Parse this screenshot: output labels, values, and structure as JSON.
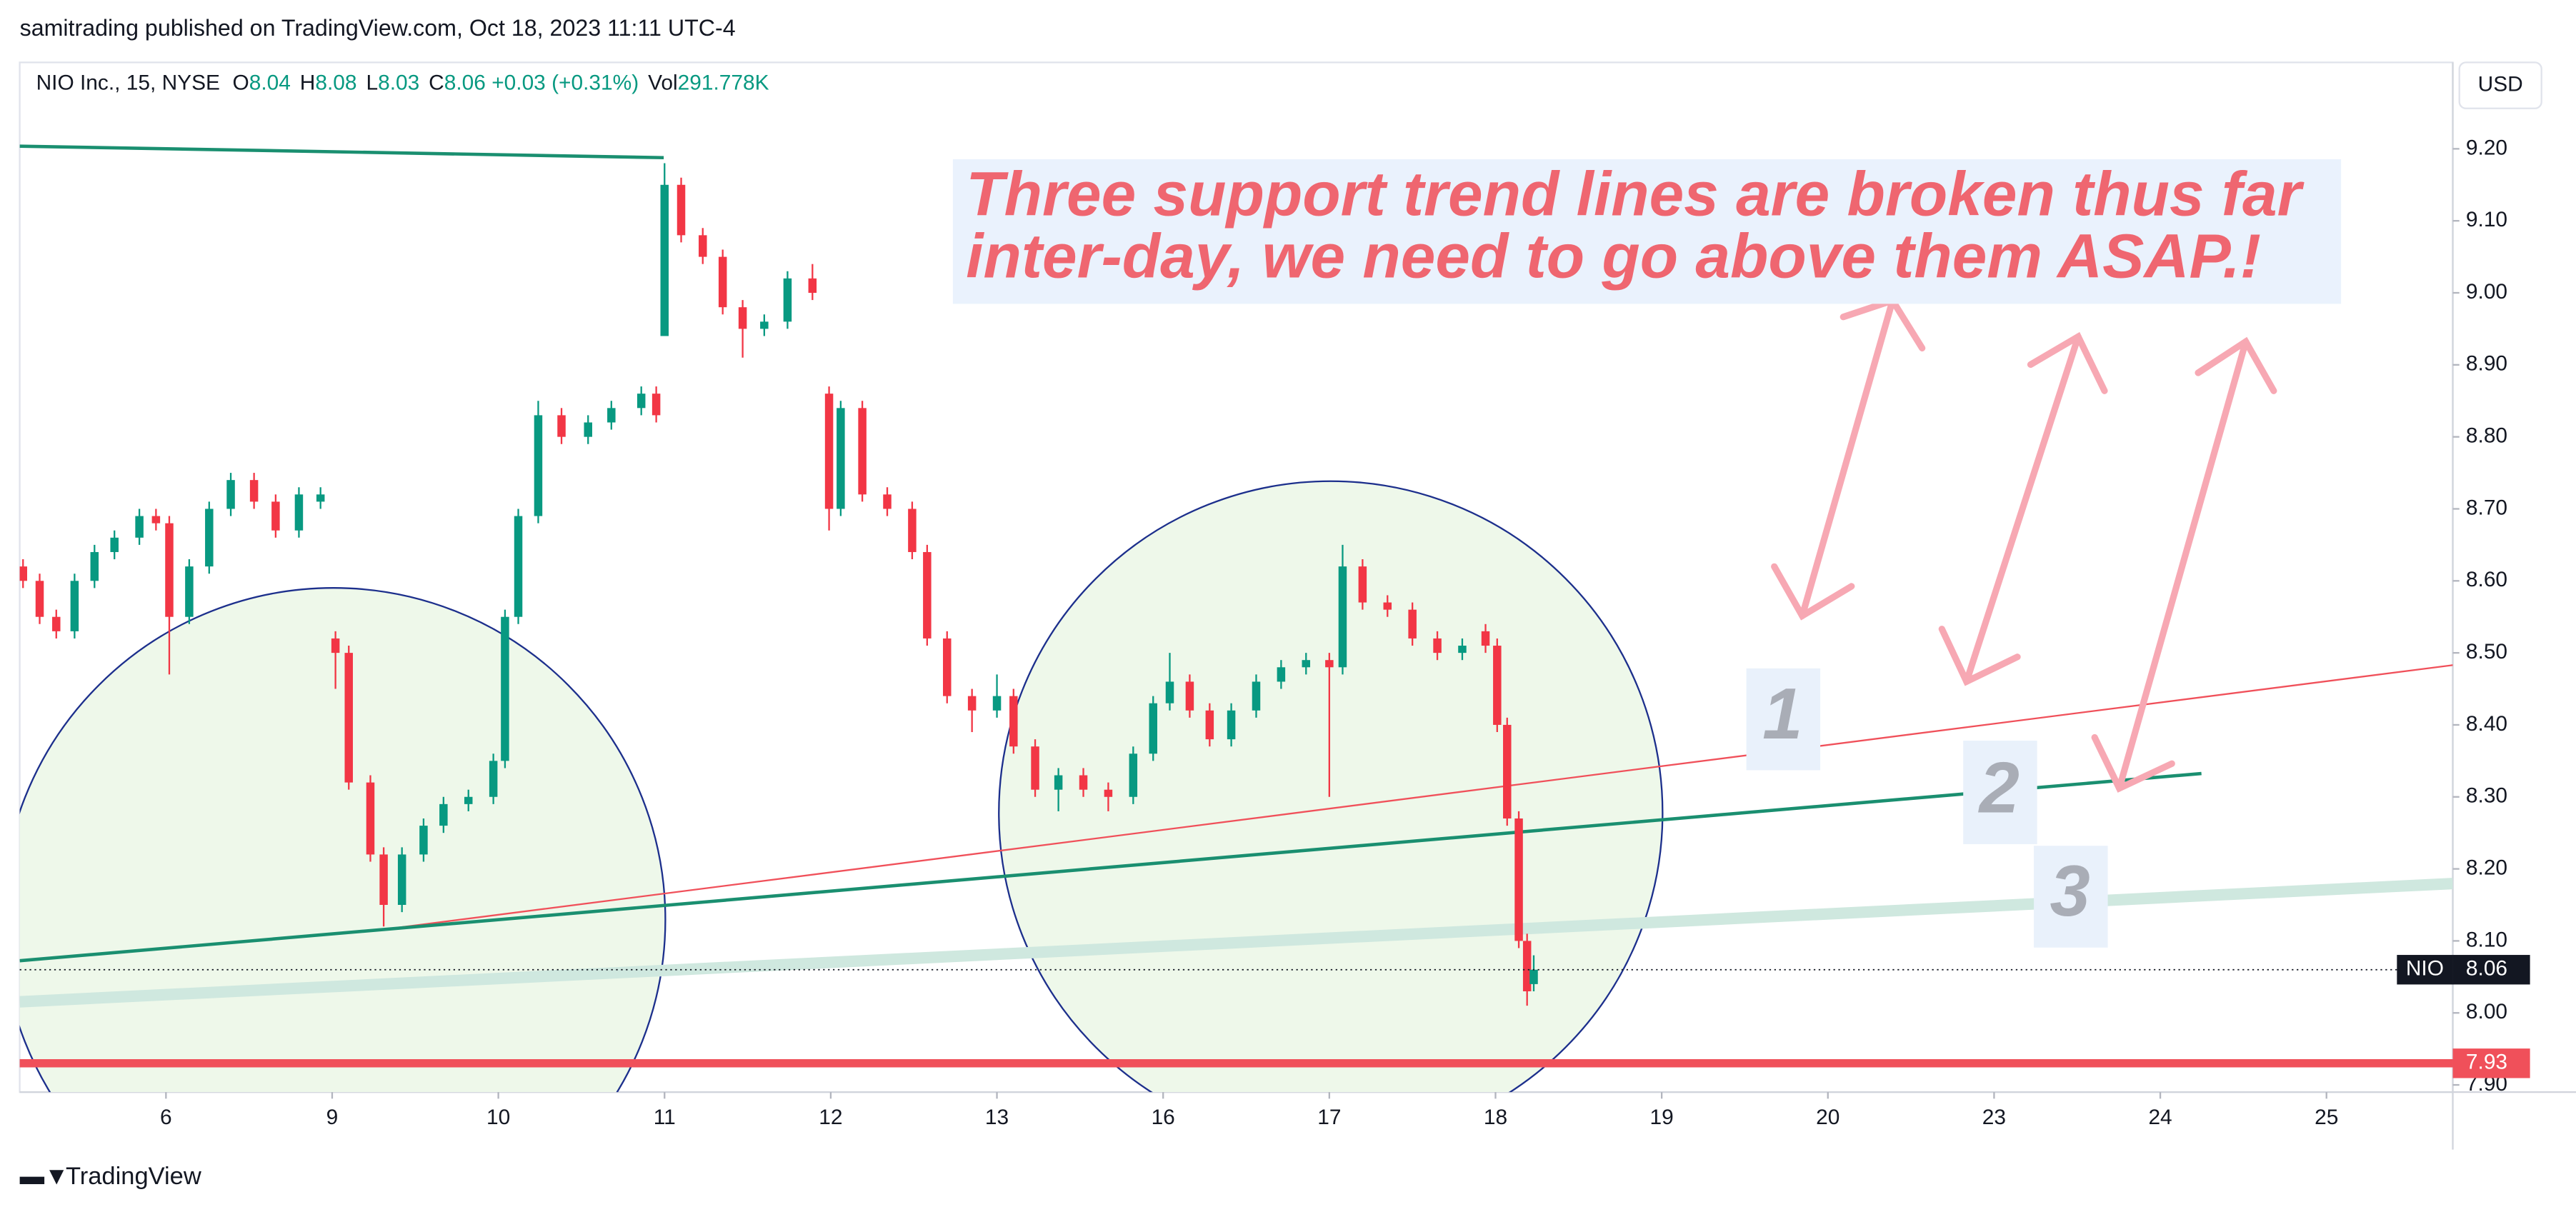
{
  "header": {
    "publisher": "samitrading published on TradingView.com, Oct 18, 2023 11:11 UTC-4",
    "footer": "TradingView"
  },
  "chart_data": {
    "type": "candlestick",
    "symbol_info": "NIO Inc., 15, NYSE",
    "legend_values": {
      "o_label": "O",
      "o": 8.04,
      "h_label": "H",
      "h": 8.08,
      "l_label": "L",
      "l": 8.03,
      "c_label": "C",
      "c": 8.06,
      "change": "+0.03 (+0.31%)",
      "vol_label": "Vol",
      "vol": "291.778K"
    },
    "currency": "USD",
    "annotation": [
      "Three support trend lines are broken thus far",
      "inter-day, we need to go above them ASAP.!"
    ],
    "line_numbers": [
      "1",
      "2",
      "3"
    ],
    "horizontal_line": {
      "value": 7.93,
      "color": "#f0505a"
    },
    "up_color": "#089981",
    "down_color": "#f23645",
    "series": [
      {
        "name": "NIO",
        "x": [
          -0.86,
          -0.76,
          -0.66,
          -0.55,
          -0.43,
          -0.31,
          -0.16,
          -0.06,
          0.02,
          0.14,
          0.26,
          0.39,
          0.53,
          0.66,
          0.8,
          0.93,
          1.02,
          1.1,
          1.23,
          1.31,
          1.42,
          1.55,
          1.67,
          1.82,
          1.97,
          2.04,
          2.12,
          2.24,
          2.38,
          2.54,
          2.68,
          2.86,
          2.95,
          3.0,
          3.1,
          3.23,
          3.35,
          3.47,
          3.6,
          3.74,
          3.89,
          3.99,
          4.06,
          4.19,
          4.34,
          4.49,
          4.58,
          4.7,
          4.85,
          5.0,
          5.1,
          5.23,
          5.37,
          5.52,
          5.67,
          5.82,
          5.94,
          6.04,
          6.16,
          6.28,
          6.41,
          6.56,
          6.71,
          6.86,
          7.0,
          7.08,
          7.2,
          7.35,
          7.5,
          7.65,
          7.8,
          7.94,
          8.01,
          8.07,
          8.14,
          8.19,
          8.23
        ],
        "open": [
          8.62,
          8.6,
          8.55,
          8.53,
          8.6,
          8.64,
          8.66,
          8.69,
          8.68,
          8.55,
          8.62,
          8.7,
          8.74,
          8.71,
          8.67,
          8.71,
          8.52,
          8.5,
          8.32,
          8.22,
          8.15,
          8.22,
          8.26,
          8.29,
          8.3,
          8.35,
          8.55,
          8.69,
          8.83,
          8.8,
          8.82,
          8.84,
          8.86,
          8.94,
          9.15,
          9.08,
          9.05,
          8.98,
          8.95,
          8.96,
          9.02,
          8.86,
          8.7,
          8.84,
          8.72,
          8.7,
          8.64,
          8.52,
          8.44,
          8.42,
          8.44,
          8.37,
          8.31,
          8.33,
          8.31,
          8.3,
          8.36,
          8.43,
          8.46,
          8.42,
          8.38,
          8.42,
          8.46,
          8.48,
          8.49,
          8.48,
          8.62,
          8.57,
          8.56,
          8.52,
          8.5,
          8.53,
          8.51,
          8.4,
          8.27,
          8.1,
          8.04
        ],
        "high": [
          8.63,
          8.61,
          8.56,
          8.61,
          8.65,
          8.67,
          8.7,
          8.7,
          8.69,
          8.63,
          8.71,
          8.75,
          8.75,
          8.72,
          8.73,
          8.73,
          8.53,
          8.51,
          8.33,
          8.23,
          8.23,
          8.27,
          8.3,
          8.31,
          8.36,
          8.56,
          8.7,
          8.85,
          8.84,
          8.83,
          8.85,
          8.87,
          8.87,
          9.18,
          9.16,
          9.09,
          9.06,
          8.99,
          8.97,
          9.03,
          9.04,
          8.87,
          8.85,
          8.85,
          8.73,
          8.71,
          8.65,
          8.53,
          8.45,
          8.47,
          8.45,
          8.38,
          8.34,
          8.34,
          8.32,
          8.37,
          8.44,
          8.5,
          8.47,
          8.43,
          8.43,
          8.47,
          8.49,
          8.5,
          8.5,
          8.65,
          8.63,
          8.58,
          8.57,
          8.53,
          8.52,
          8.54,
          8.52,
          8.41,
          8.28,
          8.11,
          8.08
        ],
        "low": [
          8.59,
          8.54,
          8.52,
          8.52,
          8.59,
          8.63,
          8.65,
          8.67,
          8.47,
          8.54,
          8.61,
          8.69,
          8.7,
          8.66,
          8.66,
          8.7,
          8.45,
          8.31,
          8.21,
          8.12,
          8.14,
          8.21,
          8.25,
          8.28,
          8.29,
          8.34,
          8.54,
          8.68,
          8.79,
          8.79,
          8.81,
          8.83,
          8.82,
          8.94,
          9.07,
          9.04,
          8.97,
          8.91,
          8.94,
          8.95,
          8.99,
          8.67,
          8.69,
          8.71,
          8.69,
          8.63,
          8.51,
          8.43,
          8.39,
          8.41,
          8.36,
          8.3,
          8.28,
          8.3,
          8.28,
          8.29,
          8.35,
          8.42,
          8.41,
          8.37,
          8.37,
          8.41,
          8.45,
          8.47,
          8.3,
          8.47,
          8.56,
          8.55,
          8.51,
          8.49,
          8.49,
          8.5,
          8.39,
          8.26,
          8.09,
          8.01,
          8.03
        ],
        "close": [
          8.6,
          8.55,
          8.53,
          8.6,
          8.64,
          8.66,
          8.69,
          8.68,
          8.55,
          8.62,
          8.7,
          8.74,
          8.71,
          8.67,
          8.72,
          8.72,
          8.5,
          8.32,
          8.22,
          8.15,
          8.22,
          8.26,
          8.29,
          8.3,
          8.35,
          8.55,
          8.69,
          8.83,
          8.8,
          8.82,
          8.84,
          8.86,
          8.83,
          9.15,
          9.08,
          9.05,
          8.98,
          8.95,
          8.96,
          9.02,
          9.0,
          8.7,
          8.84,
          8.72,
          8.7,
          8.64,
          8.52,
          8.44,
          8.42,
          8.44,
          8.37,
          8.31,
          8.33,
          8.31,
          8.3,
          8.36,
          8.43,
          8.46,
          8.42,
          8.38,
          8.42,
          8.46,
          8.48,
          8.49,
          8.48,
          8.62,
          8.57,
          8.56,
          8.52,
          8.5,
          8.51,
          8.51,
          8.4,
          8.27,
          8.1,
          8.03,
          8.06
        ]
      }
    ],
    "xlim": [
      -0.88,
      13.76
    ],
    "xticks": [
      {
        "value": 0,
        "label": "6"
      },
      {
        "value": 1,
        "label": "9"
      },
      {
        "value": 2,
        "label": "10"
      },
      {
        "value": 3,
        "label": "11"
      },
      {
        "value": 4,
        "label": "12"
      },
      {
        "value": 5,
        "label": "13"
      },
      {
        "value": 6,
        "label": "16"
      },
      {
        "value": 7,
        "label": "17"
      },
      {
        "value": 8,
        "label": "18"
      },
      {
        "value": 9,
        "label": "19"
      },
      {
        "value": 10,
        "label": "20"
      },
      {
        "value": 11,
        "label": "23"
      },
      {
        "value": 12,
        "label": "24"
      },
      {
        "value": 13,
        "label": "25"
      }
    ],
    "ylim": [
      7.89,
      9.32
    ],
    "yticks": [
      {
        "value": 7.9,
        "label": "7.90"
      },
      {
        "value": 8.0,
        "label": "8.00"
      },
      {
        "value": 8.1,
        "label": "8.10"
      },
      {
        "value": 8.2,
        "label": "8.20"
      },
      {
        "value": 8.3,
        "label": "8.30"
      },
      {
        "value": 8.4,
        "label": "8.40"
      },
      {
        "value": 8.5,
        "label": "8.50"
      },
      {
        "value": 8.6,
        "label": "8.60"
      },
      {
        "value": 8.7,
        "label": "8.70"
      },
      {
        "value": 8.8,
        "label": "8.80"
      },
      {
        "value": 8.9,
        "label": "8.90"
      },
      {
        "value": 9.0,
        "label": "9.00"
      },
      {
        "value": 9.1,
        "label": "9.10"
      },
      {
        "value": 9.2,
        "label": "9.20"
      }
    ]
  }
}
